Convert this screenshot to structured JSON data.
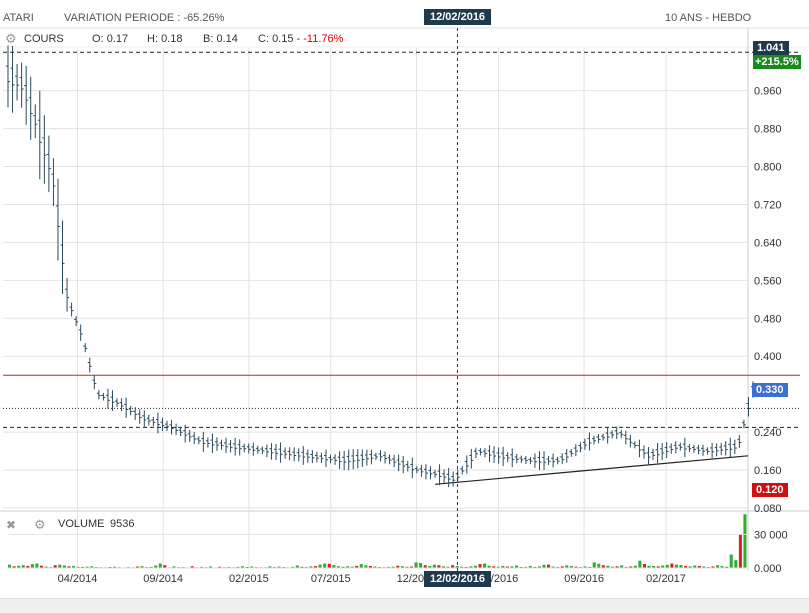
{
  "header": {
    "ticker": "ATARI",
    "variation_label": "VARIATION PERIODE :",
    "variation_value": "-65.26%",
    "period": "10 ANS - HEBDO",
    "cursor_date": "12/02/2016"
  },
  "price_panel": {
    "label": "COURS",
    "open_label": "O:",
    "open": "0.17",
    "high_label": "H:",
    "high": "0.18",
    "low_label": "B:",
    "low": "0.14",
    "close_label": "C:",
    "close": "0.15",
    "close_change": "-11.76%",
    "top_tag_value": "1.041",
    "top_tag_change": "+215.5%",
    "last_tag": "0.330",
    "low_tag": "0.120"
  },
  "volume_panel": {
    "label": "VOLUME",
    "value": "9536"
  },
  "colors": {
    "up": "#33aa33",
    "down": "#dd2222",
    "bar": "#2a4a5a",
    "grid": "#e2e2e2",
    "last_tag": "#3b6fd4",
    "low_tag": "#cc1111",
    "top_tag": "#1f3a4d",
    "top_tag_change": "#1a8a1a",
    "resistance": "#cc2222"
  },
  "chart_data": [
    {
      "type": "line",
      "title": "COURS",
      "y_ticks": [
        "0.960",
        "0.880",
        "0.800",
        "0.720",
        "0.640",
        "0.560",
        "0.480",
        "0.400",
        "0.240",
        "0.160",
        "0.080"
      ],
      "x_ticks": [
        "04/2014",
        "09/2014",
        "02/2015",
        "07/2015",
        "12/2015",
        "04/2016",
        "09/2016",
        "02/2017"
      ],
      "ylim": [
        0.08,
        1.05
      ],
      "reference_lines": [
        {
          "value": 1.041,
          "style": "dashed"
        },
        {
          "value": 0.36,
          "style": "solid",
          "color": "resistance"
        },
        {
          "value": 0.29,
          "style": "dotted"
        },
        {
          "value": 0.25,
          "style": "dashed"
        }
      ],
      "trendline": {
        "from": [
          0.5,
          0.13
        ],
        "to": [
          1.0,
          0.19
        ]
      },
      "cursor_x": 0.61,
      "series": [
        {
          "x": [
            0.0,
            0.02,
            0.04,
            0.06,
            0.08,
            0.1,
            0.12,
            0.15,
            0.18,
            0.22,
            0.26,
            0.3,
            0.35,
            0.4,
            0.45,
            0.5,
            0.55,
            0.58,
            0.6,
            0.63,
            0.66,
            0.7,
            0.74,
            0.78,
            0.82,
            0.86,
            0.9,
            0.94,
            0.98,
            1.0
          ],
          "values": [
            0.99,
            0.97,
            0.88,
            0.78,
            0.52,
            0.44,
            0.32,
            0.3,
            0.27,
            0.25,
            0.22,
            0.21,
            0.2,
            0.19,
            0.18,
            0.19,
            0.16,
            0.15,
            0.14,
            0.2,
            0.19,
            0.18,
            0.18,
            0.22,
            0.24,
            0.19,
            0.21,
            0.2,
            0.21,
            0.33
          ]
        }
      ]
    },
    {
      "type": "bar",
      "title": "VOLUME",
      "y_ticks": [
        "30 000",
        "0.000"
      ],
      "ylim": [
        0,
        50000
      ],
      "series": [
        {
          "values": [
            3000,
            1500,
            2000,
            2500,
            1800,
            3500,
            4000,
            2000,
            1200,
            800,
            2500,
            3000,
            2200,
            1500,
            1800,
            1000,
            900,
            1200,
            1500,
            800,
            700,
            600,
            900,
            1100,
            700,
            500,
            800,
            600,
            1300,
            1600,
            800,
            900,
            2200,
            4000,
            2500,
            600,
            1400,
            700,
            800,
            500,
            1600,
            600,
            1000,
            700,
            1400,
            500,
            1100,
            700,
            900,
            600,
            1000,
            1500,
            900,
            1300,
            800,
            600,
            700,
            1500,
            800,
            1200,
            900,
            600,
            1000,
            2200,
            1100,
            900,
            1500,
            1700,
            3000,
            4000,
            3800,
            2500,
            1600,
            1000,
            1500,
            1200,
            1900,
            3500,
            2400,
            1800,
            1300,
            900,
            700,
            1000,
            1200,
            2000,
            1600,
            1100,
            1300,
            5000,
            4500,
            2500,
            1800,
            3000,
            2500,
            1500,
            1200,
            2500,
            1800,
            1200,
            900,
            1500,
            2000,
            3500,
            4000,
            2000,
            1500,
            1100,
            1800,
            1300,
            1500,
            2200,
            900,
            1000,
            1700,
            900,
            1500,
            2800,
            3000,
            1200,
            900,
            1500,
            2400,
            1700,
            1200,
            900,
            1400,
            900,
            5000,
            3800,
            2500,
            1900,
            1200,
            1500,
            2300,
            1000,
            1400,
            2000,
            6500,
            3500,
            2000,
            1800,
            1500,
            2200,
            2800,
            4000,
            3000,
            2600,
            1800,
            1500,
            2200,
            1900,
            1400,
            900,
            1400,
            2500,
            1700,
            1100,
            12000,
            7000,
            30000,
            48000
          ]
        }
      ]
    }
  ]
}
